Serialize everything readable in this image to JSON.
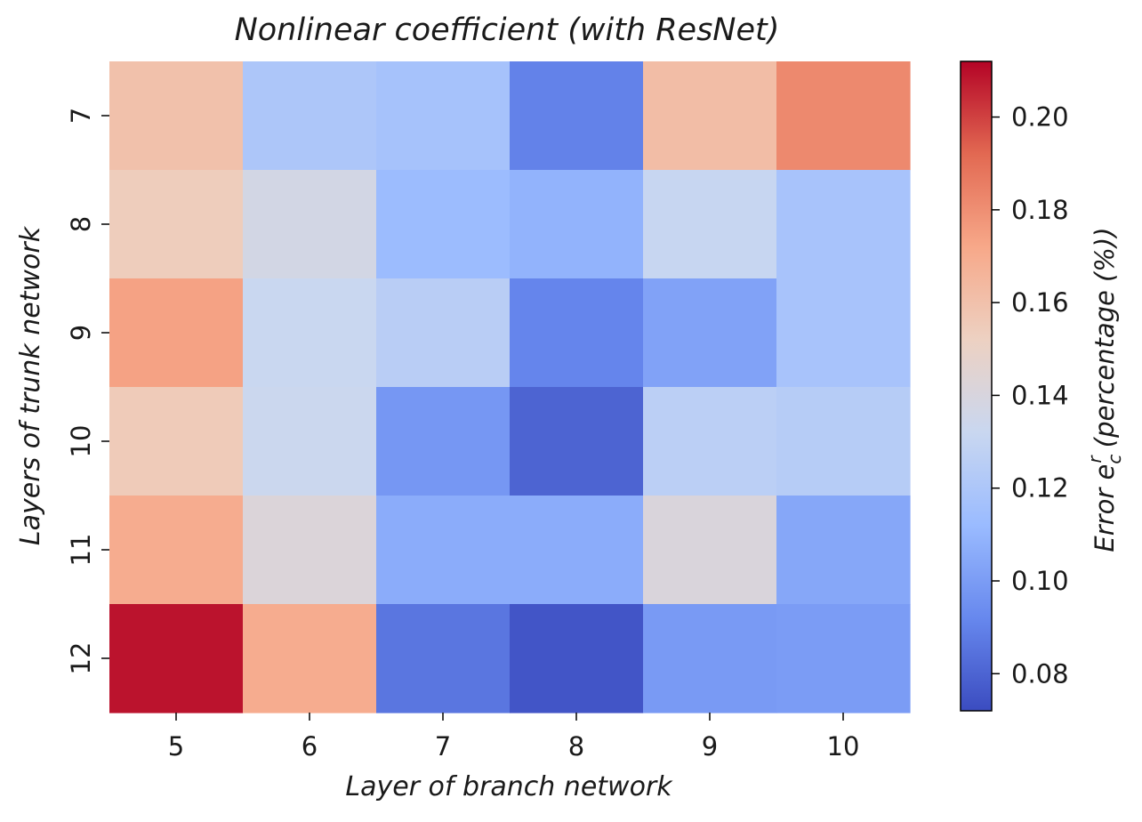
{
  "chart_data": {
    "type": "heatmap",
    "title": "Nonlinear coefficient (with ResNet)",
    "xlabel": "Layer of branch network",
    "ylabel": "Layers of trunk network",
    "x_categories": [
      "5",
      "6",
      "7",
      "8",
      "9",
      "10"
    ],
    "y_categories": [
      "7",
      "8",
      "9",
      "10",
      "11",
      "12"
    ],
    "values": [
      [
        0.16,
        0.12,
        0.117,
        0.09,
        0.162,
        0.182
      ],
      [
        0.154,
        0.137,
        0.113,
        0.109,
        0.131,
        0.118
      ],
      [
        0.174,
        0.132,
        0.125,
        0.091,
        0.102,
        0.118
      ],
      [
        0.155,
        0.133,
        0.098,
        0.08,
        0.126,
        0.124
      ],
      [
        0.17,
        0.142,
        0.106,
        0.106,
        0.141,
        0.104
      ],
      [
        0.209,
        0.17,
        0.086,
        0.075,
        0.099,
        0.1
      ]
    ],
    "colorbar": {
      "label": "Error e_c^r (percentage (%))",
      "label_parts": {
        "prefix": "Error e",
        "sub": "c",
        "sup": "r",
        "suffix": " (percentage (%))"
      },
      "range": [
        0.072,
        0.212
      ],
      "ticks": [
        0.08,
        0.1,
        0.12,
        0.14,
        0.16,
        0.18,
        0.2
      ],
      "tick_labels": [
        "0.08",
        "0.10",
        "0.12",
        "0.14",
        "0.16",
        "0.18",
        "0.20"
      ],
      "colormap": "coolwarm",
      "colormap_stops": [
        "#3b4cc0",
        "#6788ee",
        "#9abbff",
        "#c9d7f0",
        "#edd1c2",
        "#f7a889",
        "#e26952",
        "#b40426"
      ]
    },
    "grid": false,
    "legend": "colorbar-right"
  }
}
